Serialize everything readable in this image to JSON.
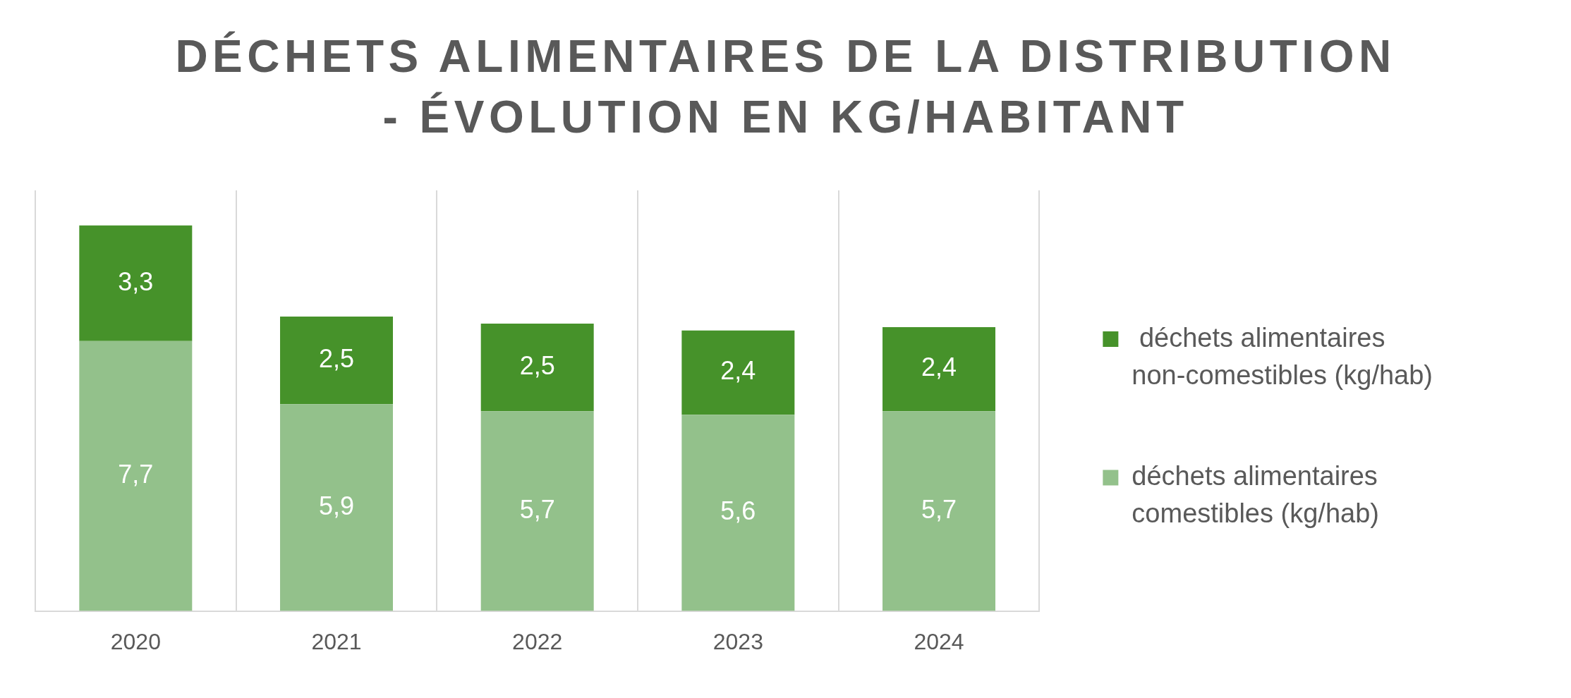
{
  "chart_data": {
    "type": "bar",
    "title": "DÉCHETS ALIMENTAIRES DE LA DISTRIBUTION - ÉVOLUTION EN KG/HABITANT",
    "categories": [
      "2020",
      "2021",
      "2022",
      "2023",
      "2024"
    ],
    "stacked": true,
    "series": [
      {
        "name": "déchets alimentaires comestibles (kg/hab)",
        "color": "#93c18b",
        "values": [
          7.7,
          5.9,
          5.7,
          5.6,
          5.7
        ],
        "value_labels": [
          "7,7",
          "5,9",
          "5,7",
          "5,6",
          "5,7"
        ]
      },
      {
        "name": " déchets alimentaires non-comestibles (kg/hab)",
        "color": "#46922a",
        "values": [
          3.3,
          2.5,
          2.5,
          2.4,
          2.4
        ],
        "value_labels": [
          "3,3",
          "2,5",
          "2,5",
          "2,4",
          "2,4"
        ]
      }
    ],
    "ylim": [
      0,
      12
    ],
    "grid": "x",
    "legend": "right",
    "tick_labels": "x"
  }
}
